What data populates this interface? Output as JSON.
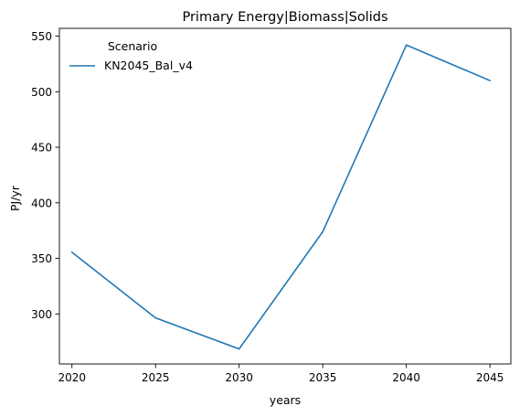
{
  "chart_data": {
    "type": "line",
    "title": "Primary Energy|Biomass|Solids",
    "xlabel": "years",
    "ylabel": "PJ/yr",
    "x": [
      2020,
      2025,
      2030,
      2035,
      2040,
      2045
    ],
    "xticks": [
      "2020",
      "2025",
      "2030",
      "2035",
      "2040",
      "2045"
    ],
    "yticks": [
      "300",
      "350",
      "400",
      "450",
      "500",
      "550"
    ],
    "xlim": [
      2019.25,
      2046.25
    ],
    "ylim": [
      255,
      557
    ],
    "grid": false,
    "legend": {
      "title": "Scenario",
      "placement": "top-left"
    },
    "series": [
      {
        "name": "KN2045_Bal_v4",
        "color": "#1f77b4",
        "values": [
          355.5,
          296.5,
          268.5,
          374.0,
          542.0,
          510.0
        ]
      }
    ]
  }
}
